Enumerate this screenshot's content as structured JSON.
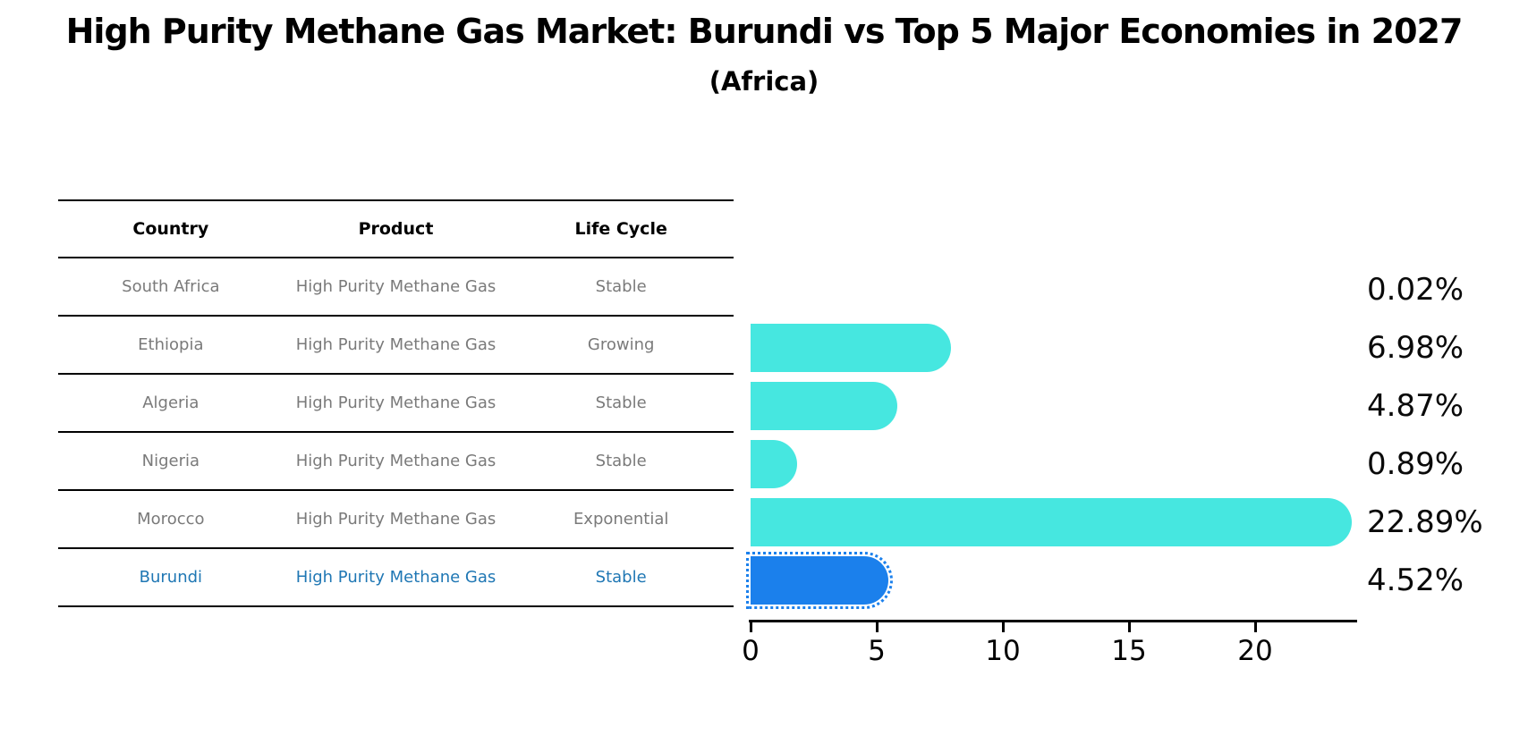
{
  "title": "High Purity Methane Gas Market: Burundi vs Top 5 Major Economies in 2027",
  "subtitle": "(Africa)",
  "table": {
    "headers": [
      "Country",
      "Product",
      "Life Cycle"
    ],
    "rows": [
      {
        "country": "South Africa",
        "product": "High Purity Methane Gas",
        "life_cycle": "Stable",
        "highlight": false
      },
      {
        "country": "Ethiopia",
        "product": "High Purity Methane Gas",
        "life_cycle": "Growing",
        "highlight": false
      },
      {
        "country": "Algeria",
        "product": "High Purity Methane Gas",
        "life_cycle": "Stable",
        "highlight": false
      },
      {
        "country": "Nigeria",
        "product": "High Purity Methane Gas",
        "life_cycle": "Stable",
        "highlight": false
      },
      {
        "country": "Morocco",
        "product": "High Purity Methane Gas",
        "life_cycle": "Exponential",
        "highlight": false
      },
      {
        "country": "Burundi",
        "product": "High Purity Methane Gas",
        "life_cycle": "Stable",
        "highlight": true
      }
    ]
  },
  "chart_data": {
    "type": "bar",
    "orientation": "horizontal",
    "categories": [
      "South Africa",
      "Ethiopia",
      "Algeria",
      "Nigeria",
      "Morocco",
      "Burundi"
    ],
    "values": [
      0.02,
      6.98,
      4.87,
      0.89,
      22.89,
      4.52
    ],
    "value_labels": [
      "0.02%",
      "6.98%",
      "4.87%",
      "0.89%",
      "22.89%",
      "4.52%"
    ],
    "xlim": [
      0,
      24.1
    ],
    "x_ticks": [
      0,
      5,
      10,
      15,
      20
    ],
    "grid": false,
    "legend": false,
    "bar_color": "#46E7E0",
    "highlight_color": "#1B80EC",
    "highlight_index": 5,
    "highlight_edge_style": "dotted",
    "highlight_text_color": "#1f77b4"
  }
}
